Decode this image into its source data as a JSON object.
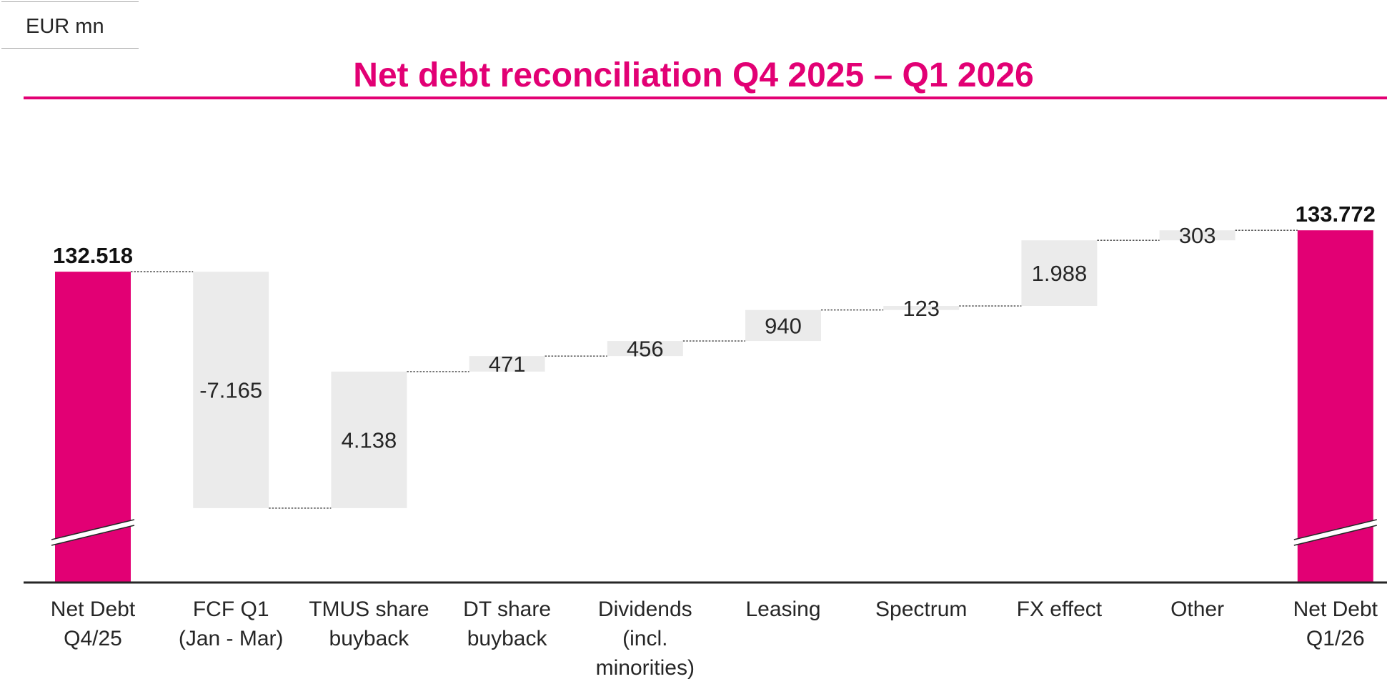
{
  "header": {
    "unit_label": "EUR mn",
    "title": "Net debt reconciliation Q4 2025 – Q1 2026"
  },
  "colors": {
    "accent": "#e20074",
    "delta_bar": "#ebebeb",
    "text": "#262626"
  },
  "chart_data": {
    "type": "bar",
    "subtype": "waterfall",
    "title": "Net debt reconciliation Q4 2025 – Q1 2026",
    "unit": "EUR mn",
    "axis_break": true,
    "grid": false,
    "categories": [
      [
        "Net Debt",
        "Q4/25"
      ],
      [
        "FCF Q1",
        "(Jan - Mar)"
      ],
      [
        "TMUS share",
        "buyback"
      ],
      [
        "DT share",
        "buyback"
      ],
      [
        "Dividends",
        "(incl.",
        "minorities)"
      ],
      [
        "Leasing"
      ],
      [
        "Spectrum"
      ],
      [
        "FX effect"
      ],
      [
        "Other"
      ],
      [
        "Net Debt",
        "Q1/26"
      ]
    ],
    "bars": [
      {
        "kind": "total",
        "value": 132518,
        "label": "132.518"
      },
      {
        "kind": "delta",
        "value": -7165,
        "label": "-7.165"
      },
      {
        "kind": "delta",
        "value": 4138,
        "label": "4.138"
      },
      {
        "kind": "delta",
        "value": 471,
        "label": "471"
      },
      {
        "kind": "delta",
        "value": 456,
        "label": "456"
      },
      {
        "kind": "delta",
        "value": 940,
        "label": "940"
      },
      {
        "kind": "delta",
        "value": 123,
        "label": "123"
      },
      {
        "kind": "delta",
        "value": 1988,
        "label": "1.988"
      },
      {
        "kind": "delta",
        "value": 303,
        "label": "303"
      },
      {
        "kind": "total",
        "value": 133772,
        "label": "133.772"
      }
    ],
    "ylim": [
      123100,
      134600
    ]
  }
}
